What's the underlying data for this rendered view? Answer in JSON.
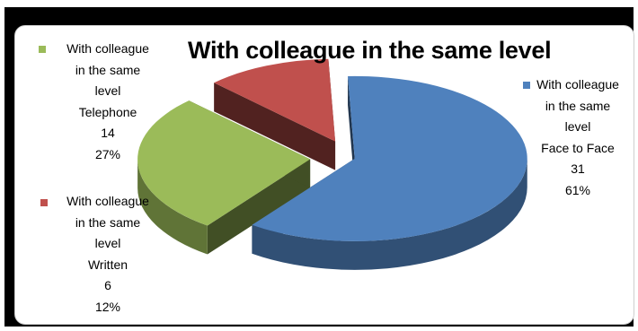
{
  "chart_data": {
    "type": "pie",
    "variant": "3d-exploded",
    "title": "With colleague in the same level",
    "series_name": "With colleague in the same level",
    "slices": [
      {
        "category": "Face to Face",
        "value": 31,
        "percent": "61%",
        "color": "#4f81bd"
      },
      {
        "category": "Telephone",
        "value": 14,
        "percent": "27%",
        "color": "#9bbb59"
      },
      {
        "category": "Written",
        "value": 6,
        "percent": "12%",
        "color": "#c0504d"
      }
    ],
    "legend": "none",
    "data_labels": "series name, category, value, percentage"
  }
}
